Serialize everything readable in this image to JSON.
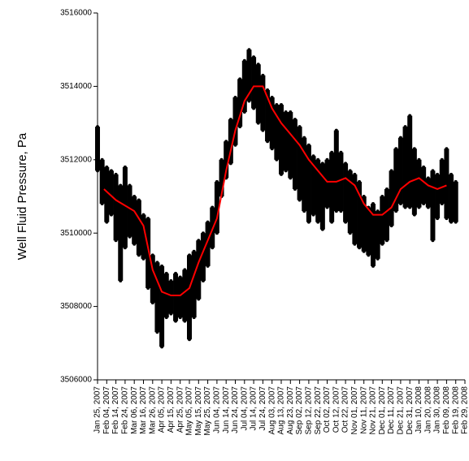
{
  "chart_data": {
    "type": "scatter",
    "y_label": "Well Fluid Pressure, Pa",
    "ylim": [
      3506000,
      3516000
    ],
    "yticks": [
      3506000,
      3508000,
      3510000,
      3512000,
      3514000,
      3516000
    ],
    "xlim": [
      "2007-01-25",
      "2008-02-29"
    ],
    "xticks": [
      {
        "value": "2007-01-25",
        "label": "Jan 25, 2007"
      },
      {
        "value": "2007-02-04",
        "label": "Feb 04, 2007"
      },
      {
        "value": "2007-02-14",
        "label": "Feb 14, 2007"
      },
      {
        "value": "2007-02-24",
        "label": "Feb 24, 2007"
      },
      {
        "value": "2007-03-06",
        "label": "Mar 06, 2007"
      },
      {
        "value": "2007-03-16",
        "label": "Mar 16, 2007"
      },
      {
        "value": "2007-03-26",
        "label": "Mar 26, 2007"
      },
      {
        "value": "2007-04-05",
        "label": "Apr 05, 2007"
      },
      {
        "value": "2007-04-15",
        "label": "Apr 15, 2007"
      },
      {
        "value": "2007-04-25",
        "label": "Apr 25, 2007"
      },
      {
        "value": "2007-05-05",
        "label": "May 05, 2007"
      },
      {
        "value": "2007-05-15",
        "label": "May 15, 2007"
      },
      {
        "value": "2007-05-25",
        "label": "May 25, 2007"
      },
      {
        "value": "2007-06-04",
        "label": "Jun 04, 2007"
      },
      {
        "value": "2007-06-14",
        "label": "Jun 14, 2007"
      },
      {
        "value": "2007-06-24",
        "label": "Jun 24, 2007"
      },
      {
        "value": "2007-07-04",
        "label": "Jul 04, 2007"
      },
      {
        "value": "2007-07-14",
        "label": "Jul 14, 2007"
      },
      {
        "value": "2007-07-24",
        "label": "Jul 24, 2007"
      },
      {
        "value": "2007-08-03",
        "label": "Aug 03, 2007"
      },
      {
        "value": "2007-08-13",
        "label": "Aug 13, 2007"
      },
      {
        "value": "2007-08-23",
        "label": "Aug 23, 2007"
      },
      {
        "value": "2007-09-02",
        "label": "Sep 02, 2007"
      },
      {
        "value": "2007-09-12",
        "label": "Sep 12, 2007"
      },
      {
        "value": "2007-09-22",
        "label": "Sep 22, 2007"
      },
      {
        "value": "2007-10-02",
        "label": "Oct 02, 2007"
      },
      {
        "value": "2007-10-12",
        "label": "Oct 12, 2007"
      },
      {
        "value": "2007-10-22",
        "label": "Oct 22, 2007"
      },
      {
        "value": "2007-11-01",
        "label": "Nov 01, 2007"
      },
      {
        "value": "2007-11-11",
        "label": "Nov 11, 2007"
      },
      {
        "value": "2007-11-21",
        "label": "Nov 21, 2007"
      },
      {
        "value": "2007-12-01",
        "label": "Dec 01, 2007"
      },
      {
        "value": "2007-12-11",
        "label": "Dec 11, 2007"
      },
      {
        "value": "2007-12-21",
        "label": "Dec 21, 2007"
      },
      {
        "value": "2007-12-31",
        "label": "Dec 31, 2007"
      },
      {
        "value": "2008-01-10",
        "label": "Jan 10, 2008"
      },
      {
        "value": "2008-01-20",
        "label": "Jan 20, 2008"
      },
      {
        "value": "2008-01-30",
        "label": "Jan 30, 2008"
      },
      {
        "value": "2008-02-09",
        "label": "Feb 09, 2008"
      },
      {
        "value": "2008-02-19",
        "label": "Feb 19, 2008"
      },
      {
        "value": "2008-02-29",
        "label": "Feb 29, 2008"
      }
    ],
    "x": [
      "2007-01-25",
      "2007-01-30",
      "2007-02-04",
      "2007-02-09",
      "2007-02-14",
      "2007-02-19",
      "2007-02-24",
      "2007-03-01",
      "2007-03-06",
      "2007-03-11",
      "2007-03-16",
      "2007-03-21",
      "2007-03-26",
      "2007-03-31",
      "2007-04-05",
      "2007-04-10",
      "2007-04-15",
      "2007-04-20",
      "2007-04-25",
      "2007-04-30",
      "2007-05-05",
      "2007-05-10",
      "2007-05-15",
      "2007-05-20",
      "2007-05-25",
      "2007-05-30",
      "2007-06-04",
      "2007-06-09",
      "2007-06-14",
      "2007-06-19",
      "2007-06-24",
      "2007-06-29",
      "2007-07-04",
      "2007-07-09",
      "2007-07-14",
      "2007-07-19",
      "2007-07-24",
      "2007-07-29",
      "2007-08-03",
      "2007-08-08",
      "2007-08-13",
      "2007-08-18",
      "2007-08-23",
      "2007-08-28",
      "2007-09-02",
      "2007-09-07",
      "2007-09-12",
      "2007-09-17",
      "2007-09-22",
      "2007-09-27",
      "2007-10-02",
      "2007-10-07",
      "2007-10-12",
      "2007-10-17",
      "2007-10-22",
      "2007-10-27",
      "2007-11-01",
      "2007-11-06",
      "2007-11-11",
      "2007-11-16",
      "2007-11-21",
      "2007-11-26",
      "2007-12-01",
      "2007-12-06",
      "2007-12-11",
      "2007-12-16",
      "2007-12-21",
      "2007-12-26",
      "2007-12-31",
      "2008-01-05",
      "2008-01-10",
      "2008-01-15",
      "2008-01-20",
      "2008-01-25",
      "2008-01-30",
      "2008-02-04",
      "2008-02-09",
      "2008-02-14",
      "2008-02-19"
    ],
    "series": [
      {
        "color": "#000000",
        "values": [
          3512900,
          3512000,
          3511800,
          3511700,
          3511600,
          3511300,
          3511800,
          3511300,
          3511000,
          3510900,
          3510500,
          3510400,
          3509400,
          3509200,
          3509100,
          3508900,
          3508700,
          3508900,
          3508800,
          3509000,
          3509400,
          3509500,
          3509800,
          3510000,
          3510300,
          3510700,
          3511400,
          3512000,
          3512500,
          3513100,
          3513700,
          3514200,
          3514700,
          3515000,
          3514800,
          3514600,
          3514300,
          3513900,
          3513700,
          3513500,
          3513500,
          3513300,
          3513300,
          3513100,
          3512900,
          3512600,
          3512400,
          3512100,
          3512000,
          3511900,
          3512000,
          3512200,
          3512800,
          3512200,
          3511900,
          3511700,
          3511600,
          3511400,
          3511000,
          3510700,
          3510800,
          3510600,
          3511000,
          3511200,
          3511700,
          3512300,
          3512600,
          3512900,
          3513200,
          3512300,
          3512000,
          3511800,
          3511500,
          3511700,
          3511600,
          3512000,
          3512300,
          3511600,
          3511400
        ]
      },
      {
        "color": "#000000",
        "values": [
          3511700,
          3510800,
          3510300,
          3510500,
          3509800,
          3508700,
          3509600,
          3509900,
          3509700,
          3509400,
          3509300,
          3508500,
          3508100,
          3507300,
          3506900,
          3507700,
          3507800,
          3507600,
          3507700,
          3507600,
          3507100,
          3507700,
          3508200,
          3508700,
          3509100,
          3509600,
          3510000,
          3511000,
          3511500,
          3511900,
          3512400,
          3512900,
          3513300,
          3513600,
          3513400,
          3513000,
          3512800,
          3512500,
          3512300,
          3512000,
          3511600,
          3511700,
          3511500,
          3511200,
          3510900,
          3510600,
          3510300,
          3510500,
          3510300,
          3510100,
          3510700,
          3510300,
          3510600,
          3510600,
          3510300,
          3510000,
          3509700,
          3509600,
          3509500,
          3509400,
          3509100,
          3509300,
          3509700,
          3509800,
          3510200,
          3510600,
          3510800,
          3510700,
          3510700,
          3510500,
          3510700,
          3510800,
          3510700,
          3509800,
          3510400,
          3510800,
          3510400,
          3510300,
          3510300
        ]
      },
      {
        "color": "#ff0000",
        "line": true,
        "x": [
          "2007-02-01",
          "2007-02-14",
          "2007-03-06",
          "2007-03-16",
          "2007-03-26",
          "2007-04-05",
          "2007-04-15",
          "2007-04-25",
          "2007-05-05",
          "2007-05-15",
          "2007-05-25",
          "2007-06-04",
          "2007-06-14",
          "2007-06-24",
          "2007-07-04",
          "2007-07-14",
          "2007-07-24",
          "2007-08-03",
          "2007-08-13",
          "2007-08-23",
          "2007-09-02",
          "2007-09-12",
          "2007-09-22",
          "2007-10-02",
          "2007-10-12",
          "2007-10-22",
          "2007-11-01",
          "2007-11-11",
          "2007-11-21",
          "2007-12-01",
          "2007-12-11",
          "2007-12-21",
          "2007-12-31",
          "2008-01-10",
          "2008-01-20",
          "2008-01-30",
          "2008-02-09"
        ],
        "values": [
          3511200,
          3510900,
          3510600,
          3510200,
          3509000,
          3508400,
          3508300,
          3508300,
          3508500,
          3509200,
          3509800,
          3510400,
          3511700,
          3512800,
          3513600,
          3514000,
          3514000,
          3513400,
          3513000,
          3512700,
          3512400,
          3512000,
          3511700,
          3511400,
          3511400,
          3511500,
          3511300,
          3510800,
          3510500,
          3510500,
          3510700,
          3511200,
          3511400,
          3511500,
          3511300,
          3511200,
          3511300
        ]
      }
    ]
  }
}
